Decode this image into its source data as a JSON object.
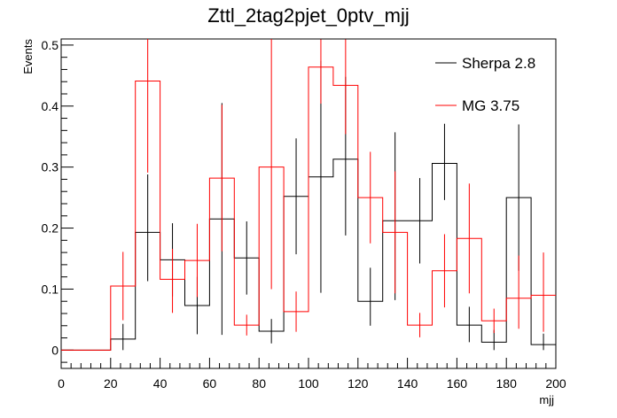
{
  "chart_data": {
    "type": "histogram",
    "title": "Zttl_2tag2pjet_0ptv_mjj",
    "xlabel": "mjj",
    "ylabel": "Events",
    "xlim": [
      0,
      200
    ],
    "ylim": [
      -0.03,
      0.51
    ],
    "x_ticks": [
      0,
      20,
      40,
      60,
      80,
      100,
      120,
      140,
      160,
      180,
      200
    ],
    "x_tick_labels": [
      "0",
      "20",
      "40",
      "60",
      "80",
      "100",
      "120",
      "140",
      "160",
      "180",
      "200"
    ],
    "y_ticks": [
      0,
      0.1,
      0.2,
      0.3,
      0.4,
      0.5
    ],
    "y_tick_labels": [
      "0",
      "0.1",
      "0.2",
      "0.3",
      "0.4",
      "0.5"
    ],
    "bin_edges": [
      0,
      10,
      20,
      30,
      40,
      50,
      60,
      70,
      80,
      90,
      100,
      110,
      120,
      130,
      140,
      150,
      160,
      170,
      180,
      190,
      200
    ],
    "legend_position": "top-right",
    "grid": false,
    "series": [
      {
        "name": "Sherpa 2.8",
        "color": "#000000",
        "values": [
          0,
          0,
          0.018,
          0.193,
          0.148,
          0.073,
          0.215,
          0.151,
          0.031,
          0.252,
          0.284,
          0.313,
          0.08,
          0.212,
          0.212,
          0.306,
          0.041,
          0.013,
          0.25,
          0.009
        ],
        "err_up": [
          0,
          0,
          0.025,
          0.095,
          0.06,
          0.047,
          0.19,
          0.06,
          0.02,
          0.095,
          0.19,
          0.135,
          0.055,
          0.145,
          0.07,
          0.065,
          0.03,
          0.02,
          0.12,
          0.018
        ],
        "err_down": [
          0,
          0,
          0.018,
          0.08,
          0.06,
          0.047,
          0.19,
          0.06,
          0.02,
          0.095,
          0.19,
          0.125,
          0.04,
          0.13,
          0.07,
          0.06,
          0.028,
          0.013,
          0.12,
          0.009
        ]
      },
      {
        "name": "MG 3.75",
        "color": "#ff0000",
        "values": [
          0,
          0,
          0.105,
          0.441,
          0.116,
          0.147,
          0.282,
          0.041,
          0.3,
          0.063,
          0.464,
          0.434,
          0.25,
          0.193,
          0.041,
          0.13,
          0.183,
          0.048,
          0.085,
          0.09
        ],
        "err_up": [
          0,
          0,
          0.056,
          0.07,
          0.05,
          0.06,
          0.12,
          0.017,
          0.21,
          0.033,
          0.05,
          0.08,
          0.075,
          0.1,
          0.02,
          0.06,
          0.09,
          0.02,
          0.07,
          0.07
        ],
        "err_down": [
          0,
          0,
          0.056,
          0.15,
          0.055,
          0.06,
          0.12,
          0.017,
          0.2,
          0.033,
          0.06,
          0.08,
          0.075,
          0.1,
          0.02,
          0.06,
          0.09,
          0.02,
          0.05,
          0.06
        ]
      }
    ]
  }
}
